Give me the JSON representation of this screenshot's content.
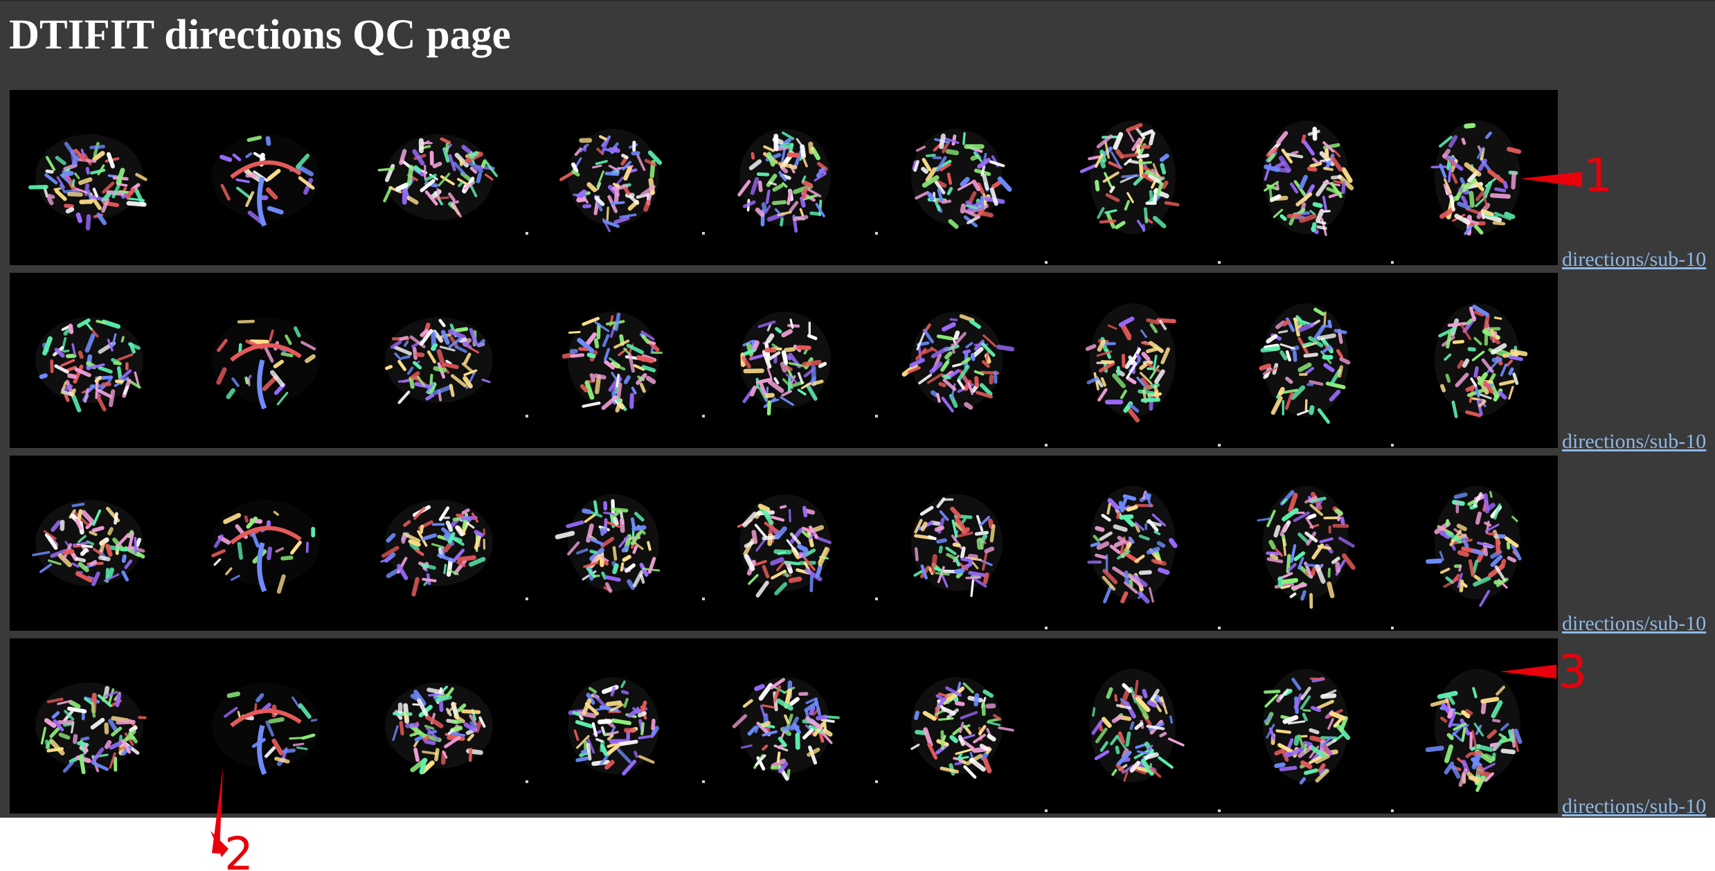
{
  "page": {
    "title": "DTIFIT directions QC page"
  },
  "rows": [
    {
      "image_alt": "directions/sub-10 colour-coded DTI slices",
      "link": "directions/sub-10"
    },
    {
      "image_alt": "directions/sub-10 colour-coded DTI slices",
      "link": "directions/sub-10"
    },
    {
      "image_alt": "directions/sub-10 colour-coded DTI slices",
      "link": "directions/sub-10"
    },
    {
      "image_alt": "directions/sub-10 colour-coded DTI slices",
      "link": "directions/sub-10"
    }
  ],
  "slice_views": [
    "sagittal",
    "sagittal",
    "sagittal",
    "coronal",
    "coronal",
    "coronal",
    "axial",
    "axial",
    "axial"
  ],
  "annotations": [
    {
      "label": "1",
      "row": 1,
      "slice": 9
    },
    {
      "label": "2",
      "row": 4,
      "slice": 2
    },
    {
      "label": "3",
      "row": 4,
      "slice": 9
    }
  ],
  "colors": {
    "page_background": "#3a3a3a",
    "image_background": "#000000",
    "link": "#8db8e6",
    "annotation": "#e8000b",
    "fiber_palette": [
      "#5df2b0",
      "#8ef07a",
      "#6f8cff",
      "#f0a0d8",
      "#ffe08a",
      "#9c6bff",
      "#ffffff",
      "#e65a5a"
    ]
  }
}
